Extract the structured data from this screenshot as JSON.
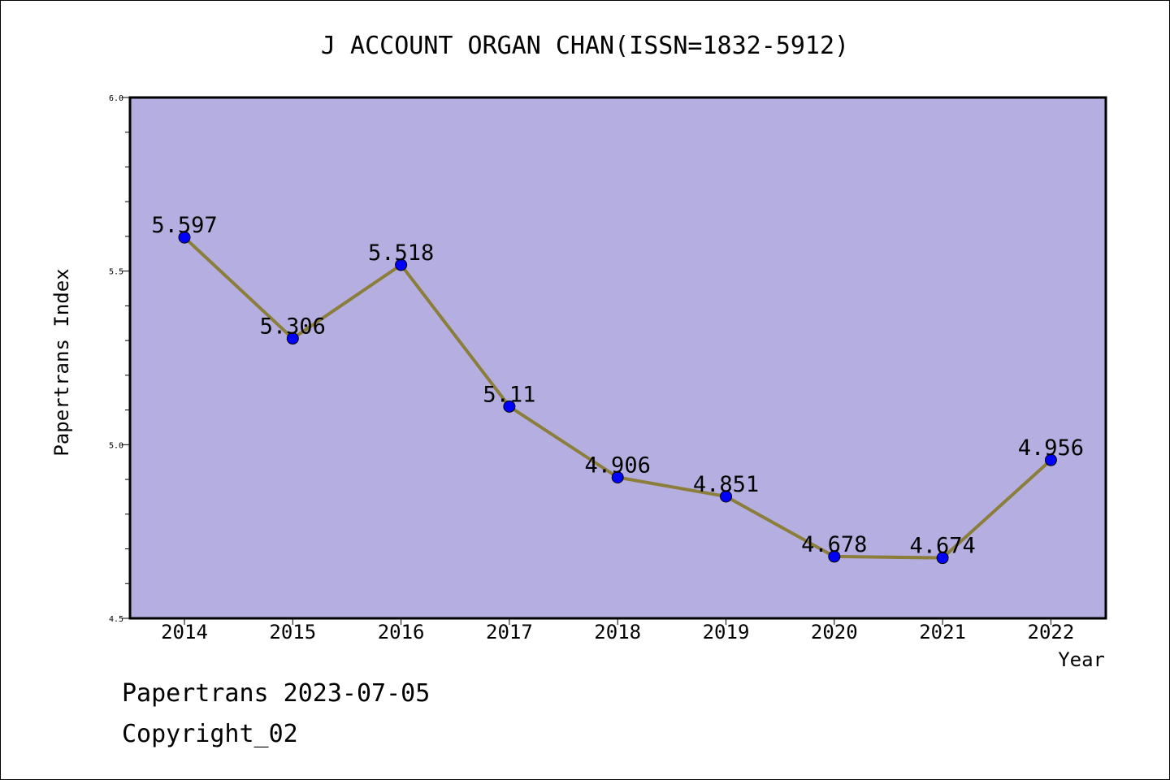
{
  "chart_data": {
    "type": "line",
    "title": "J ACCOUNT ORGAN CHAN(ISSN=1832-5912)",
    "xlabel": "Year",
    "ylabel": "Papertrans Index",
    "categories": [
      "2014",
      "2015",
      "2016",
      "2017",
      "2018",
      "2019",
      "2020",
      "2021",
      "2022"
    ],
    "values": [
      5.597,
      5.306,
      5.518,
      5.11,
      4.906,
      4.851,
      4.678,
      4.674,
      4.956
    ],
    "data_labels": [
      "5.597",
      "5.306",
      "5.518",
      "5.11",
      "4.906",
      "4.851",
      "4.678",
      "4.674",
      "4.956"
    ],
    "ylim": [
      4.5,
      6.0
    ],
    "yticks": [
      "4.5",
      "5.0",
      "5.5",
      "6.0"
    ],
    "grid": false,
    "colors": {
      "plot_background": "#b5afe1",
      "line": "#8b7d3a",
      "marker": "#0000ff"
    }
  },
  "footer": {
    "line1": "Papertrans 2023-07-05",
    "line2": "Copyright_02"
  }
}
